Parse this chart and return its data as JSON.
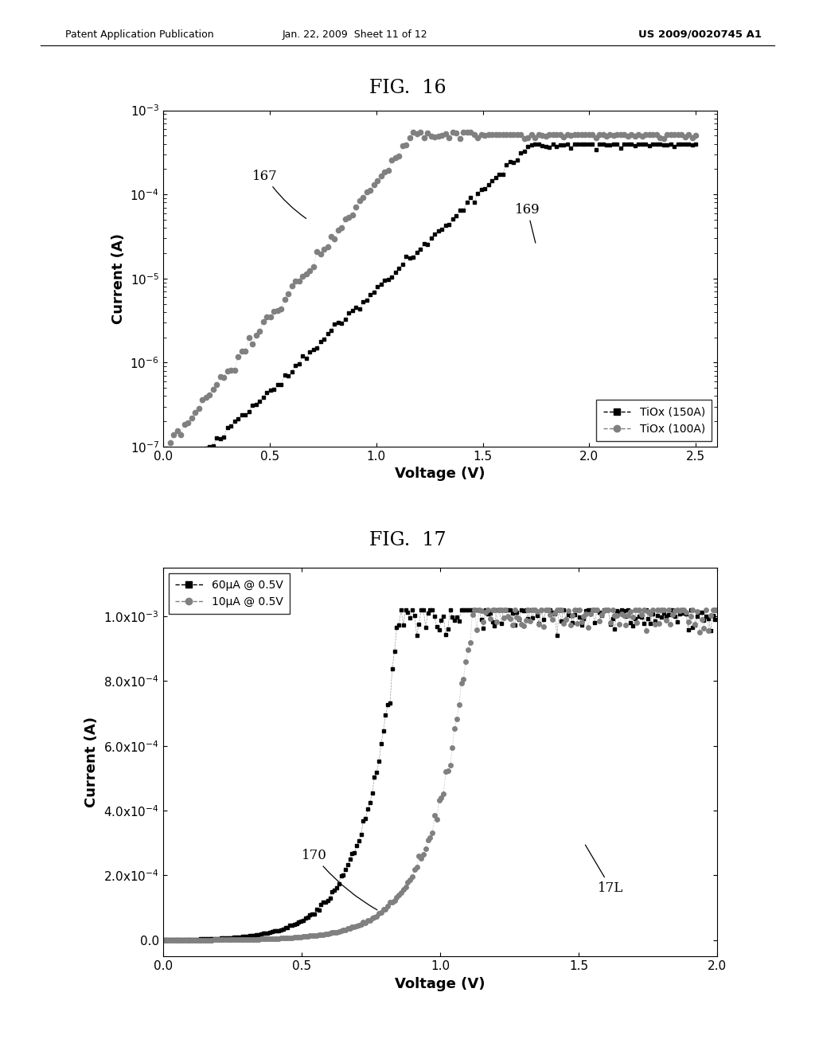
{
  "header_left": "Patent Application Publication",
  "header_mid": "Jan. 22, 2009  Sheet 11 of 12",
  "header_right": "US 2009/0020745 A1",
  "fig1_title": "FIG.  16",
  "fig2_title": "FIG.  17",
  "fig1_xlabel": "Voltage (V)",
  "fig1_ylabel": "Current (A)",
  "fig2_xlabel": "Voltage (V)",
  "fig2_ylabel": "Current (A)",
  "fig1_xlim": [
    0.0,
    2.6
  ],
  "fig2_xlim": [
    0.0,
    2.0
  ],
  "legend1_labels": [
    "TiOx (150A)",
    "TiOx (100A)"
  ],
  "legend2_labels": [
    "60μA @ 0.5V",
    "10μA @ 0.5V"
  ],
  "annot1_167": "167",
  "annot1_169": "169",
  "annot2_170": "170",
  "annot2_17L": "17L",
  "background": "#ffffff"
}
